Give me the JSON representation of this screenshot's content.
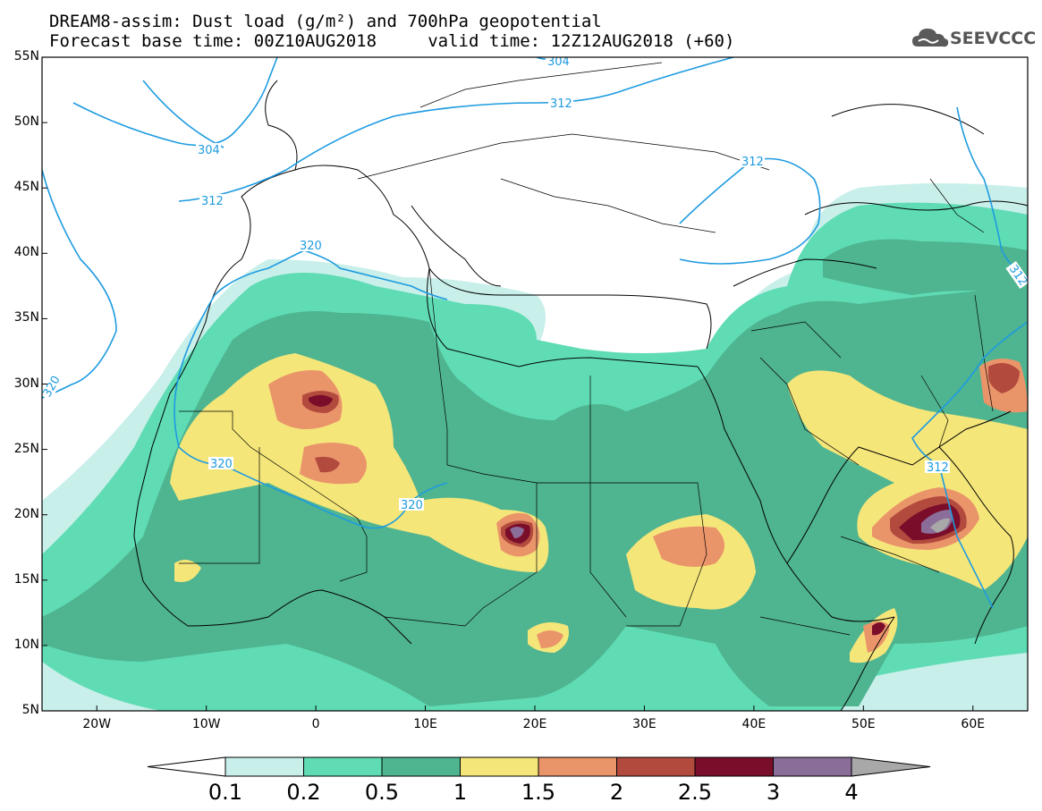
{
  "header": {
    "title_line1": "DREAM8-assim: Dust load (g/m²) and 700hPa geopotential",
    "title_line2": "Forecast base time: 00Z10AUG2018     valid time: 12Z12AUG2018 (+60)",
    "logo_text": "SEEVCCC",
    "logo_icon": "cloud-icon"
  },
  "axes": {
    "lat_ticks": [
      "55N",
      "50N",
      "45N",
      "40N",
      "35N",
      "30N",
      "25N",
      "20N",
      "15N",
      "10N",
      "5N"
    ],
    "lon_ticks": [
      "20W",
      "10W",
      "0",
      "10E",
      "20E",
      "30E",
      "40E",
      "50E",
      "60E"
    ],
    "lat_range": [
      5,
      55
    ],
    "lon_range": [
      -25,
      65
    ]
  },
  "contours": {
    "geopotential_labels": [
      "304",
      "312",
      "320",
      "320",
      "312",
      "312",
      "320",
      "320",
      "312",
      "304",
      "312"
    ]
  },
  "colorbar": {
    "levels": [
      "0.1",
      "0.2",
      "0.5",
      "1",
      "1.5",
      "2",
      "2.5",
      "3",
      "4"
    ],
    "colors": [
      "#c8efea",
      "#5fdcb4",
      "#4fb490",
      "#f5e67a",
      "#ea946a",
      "#b24a3e",
      "#7a0d2a",
      "#8b6d9a",
      "#a8a8a8"
    ]
  }
}
